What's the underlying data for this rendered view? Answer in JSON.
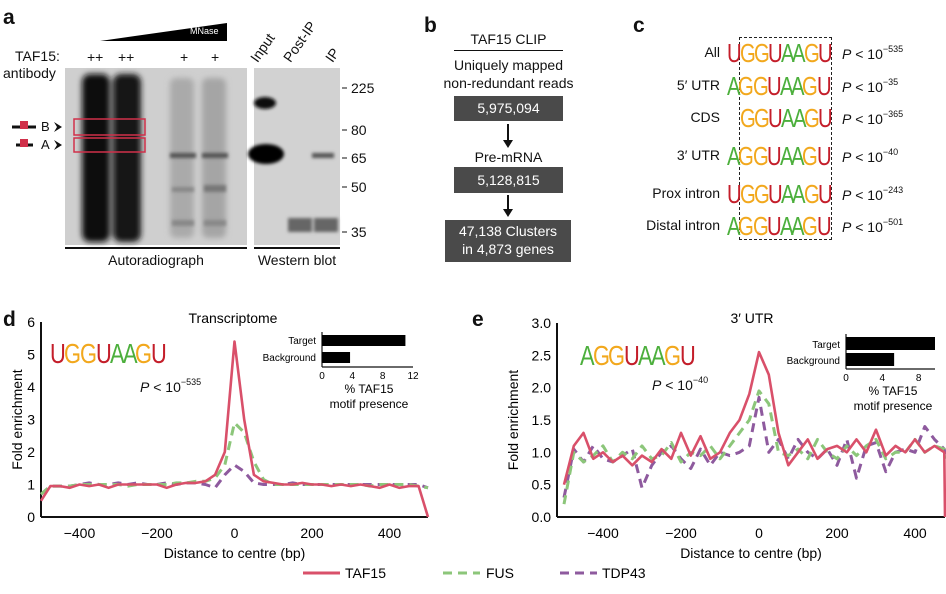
{
  "colors": {
    "TAF15": "#d9506a",
    "FUS": "#8cc67a",
    "TDP43": "#8e5a9e",
    "box": "#4a4a4a",
    "highlight": "#d0304a",
    "A": "#4caf3c",
    "G": "#f2a81d",
    "U": "#c41e2a",
    "C": "#3b4fb3"
  },
  "panel_a": {
    "label": "a",
    "mnase": "MNase",
    "taf15_label": "TAF15:",
    "antibody_label": "antibody",
    "lanes": [
      "++",
      "++",
      "+",
      "+"
    ],
    "wb_lanes": [
      "Input",
      "Post-IP",
      "IP"
    ],
    "band_b": "B",
    "band_a": "A",
    "mw_markers": [
      "225",
      "80",
      "65",
      "50",
      "35"
    ],
    "autorad_label": "Autoradiograph",
    "wb_label": "Western blot"
  },
  "panel_b": {
    "label": "b",
    "title": "TAF15 CLIP",
    "step1_label1": "Uniquely mapped",
    "step1_label2": "non-redundant reads",
    "step1_value": "5,975,094",
    "step2_label": "Pre-mRNA",
    "step2_value": "5,128,815",
    "step3_line1": "47,138 Clusters",
    "step3_line2": "in 4,873 genes"
  },
  "panel_c": {
    "label": "c",
    "rows": [
      {
        "name": "All",
        "motif": "UGGUAAGU",
        "p": "P",
        "lt": " < 10",
        "exp": "−535"
      },
      {
        "name": "5′ UTR",
        "motif": "AGGUAAGU",
        "p": "P",
        "lt": " < 10",
        "exp": "−35"
      },
      {
        "name": "CDS",
        "motif": "GGUAAGU",
        "p": "P",
        "lt": " < 10",
        "exp": "−365"
      },
      {
        "name": "3′ UTR",
        "motif": "AGGUAAGU",
        "p": "P",
        "lt": " < 10",
        "exp": "−40"
      },
      {
        "name": "Prox intron",
        "motif": "UGGUAAGU",
        "p": "P",
        "lt": " < 10",
        "exp": "−243"
      },
      {
        "name": "Distal intron",
        "motif": "AGGUAAGU",
        "p": "P",
        "lt": " < 10",
        "exp": "−501"
      }
    ]
  },
  "panel_d": {
    "label": "d",
    "motif": "UGGUAAGU",
    "p": "P",
    "lt": " < 10",
    "exp": "−535"
  },
  "panel_e": {
    "label": "e",
    "motif": "AGGUAAGU",
    "p": "P",
    "lt": " < 10",
    "exp": "−40"
  },
  "legend": [
    {
      "name": "TAF15",
      "style": "solid"
    },
    {
      "name": "FUS",
      "style": "dashed"
    },
    {
      "name": "TDP43",
      "style": "dashed"
    }
  ],
  "chart_data": [
    {
      "type": "line",
      "title": "Transcriptome",
      "xlabel": "Distance to centre (bp)",
      "ylabel": "Fold enrichment",
      "xlim": [
        -500,
        500
      ],
      "ylim": [
        0,
        6
      ],
      "xticks": [
        -400,
        -200,
        0,
        200,
        400
      ],
      "xtick_labels": [
        "−400",
        "−200",
        "0",
        "200",
        "400"
      ],
      "yticks": [
        0,
        1,
        2,
        3,
        4,
        5,
        6
      ],
      "ytick_labels": [
        "0",
        "1",
        "2",
        "3",
        "4",
        "5",
        "6"
      ],
      "grid": false,
      "x_step_start": -500,
      "x_step": 25,
      "series": [
        {
          "name": "TAF15",
          "values": [
            0.5,
            0.95,
            0.95,
            0.9,
            1.0,
            0.95,
            1.0,
            0.9,
            1.0,
            1.0,
            1.0,
            1.0,
            1.0,
            0.9,
            1.0,
            1.05,
            1.05,
            1.1,
            1.3,
            2.0,
            5.4,
            3.0,
            1.3,
            1.1,
            1.05,
            1.0,
            1.0,
            1.05,
            1.0,
            1.0,
            0.95,
            1.0,
            0.95,
            1.0,
            0.95,
            0.9,
            1.0,
            0.9,
            0.95,
            0.95,
            0.0
          ]
        },
        {
          "name": "FUS",
          "values": [
            0.7,
            0.95,
            0.95,
            0.95,
            1.0,
            1.0,
            1.0,
            1.0,
            1.0,
            0.95,
            1.0,
            1.0,
            1.0,
            1.0,
            1.05,
            1.05,
            1.1,
            1.1,
            1.2,
            1.6,
            2.9,
            2.6,
            1.7,
            1.15,
            1.0,
            1.0,
            1.0,
            1.0,
            1.0,
            1.0,
            1.0,
            1.0,
            1.0,
            1.0,
            0.95,
            1.0,
            1.0,
            1.0,
            1.0,
            0.95,
            0.9
          ]
        },
        {
          "name": "TDP43",
          "values": [
            0.7,
            0.95,
            0.95,
            0.95,
            1.0,
            1.05,
            1.0,
            1.0,
            1.05,
            1.0,
            1.05,
            1.0,
            1.0,
            1.05,
            1.0,
            1.05,
            1.05,
            1.0,
            0.9,
            1.3,
            1.6,
            1.4,
            1.05,
            1.0,
            1.0,
            1.0,
            1.05,
            1.0,
            1.0,
            1.0,
            1.0,
            1.0,
            1.0,
            1.0,
            1.0,
            1.0,
            1.0,
            1.0,
            1.0,
            1.0,
            0.9
          ]
        }
      ],
      "inset": {
        "type": "bar",
        "orientation": "horizontal",
        "categories": [
          "Target",
          "Background"
        ],
        "values": [
          11,
          3.7
        ],
        "xlim": [
          0,
          12
        ],
        "xticks": [
          "0",
          "4",
          "8",
          "12"
        ],
        "xlabel1": "% TAF15",
        "xlabel2": "motif presence"
      }
    },
    {
      "type": "line",
      "title": "3′ UTR",
      "xlabel": "Distance to centre (bp)",
      "ylabel": "Fold enrichment",
      "xlim": [
        -500,
        500
      ],
      "ylim": [
        0,
        3
      ],
      "xticks": [
        -400,
        -200,
        0,
        200,
        400
      ],
      "xtick_labels": [
        "−400",
        "−200",
        "0",
        "200",
        "400"
      ],
      "yticks": [
        0,
        0.5,
        1,
        1.5,
        2,
        2.5,
        3
      ],
      "ytick_labels": [
        "0.0",
        "0.5",
        "1.0",
        "1.5",
        "2.0",
        "2.5",
        "3.0"
      ],
      "grid": false,
      "x_step_start": -500,
      "x_step": 25,
      "series": [
        {
          "name": "TAF15",
          "values": [
            0.5,
            1.1,
            1.3,
            0.9,
            1.0,
            0.85,
            0.95,
            0.8,
            0.95,
            0.85,
            1.05,
            0.9,
            1.3,
            0.95,
            1.25,
            0.9,
            1.0,
            1.3,
            1.5,
            1.9,
            2.55,
            2.2,
            1.3,
            0.8,
            1.0,
            1.2,
            0.9,
            1.05,
            1.1,
            1.0,
            1.2,
            1.0,
            1.35,
            0.95,
            1.1,
            1.0,
            1.2,
            1.0,
            1.1,
            1.0,
            0.0
          ]
        },
        {
          "name": "FUS",
          "values": [
            0.2,
            1.0,
            0.85,
            0.95,
            1.1,
            0.85,
            1.0,
            0.9,
            1.1,
            0.9,
            0.95,
            1.15,
            0.85,
            1.0,
            0.95,
            1.1,
            0.9,
            1.1,
            1.3,
            1.5,
            1.95,
            1.75,
            1.0,
            0.95,
            1.05,
            0.9,
            1.2,
            1.0,
            0.9,
            1.1,
            0.95,
            1.1,
            1.2,
            0.9,
            1.0,
            1.0,
            1.2,
            1.0,
            1.1,
            1.05,
            0.9
          ]
        },
        {
          "name": "TDP43",
          "values": [
            0.3,
            1.05,
            0.85,
            1.1,
            0.9,
            0.85,
            0.95,
            1.05,
            0.45,
            0.8,
            1.0,
            1.1,
            0.9,
            0.75,
            1.05,
            0.8,
            1.0,
            0.95,
            1.0,
            1.1,
            1.85,
            1.0,
            1.2,
            0.9,
            1.2,
            1.0,
            0.9,
            1.05,
            0.8,
            1.2,
            0.6,
            1.1,
            1.15,
            0.7,
            1.0,
            1.05,
            1.0,
            1.4,
            1.2,
            1.05,
            0.95
          ]
        }
      ],
      "inset": {
        "type": "bar",
        "orientation": "horizontal",
        "categories": [
          "Target",
          "Background"
        ],
        "values": [
          9.8,
          5.3
        ],
        "xlim": [
          0,
          9.8
        ],
        "xticks": [
          "0",
          "4",
          "8"
        ],
        "xlabel1": "% TAF15",
        "xlabel2": "motif presence"
      }
    }
  ]
}
